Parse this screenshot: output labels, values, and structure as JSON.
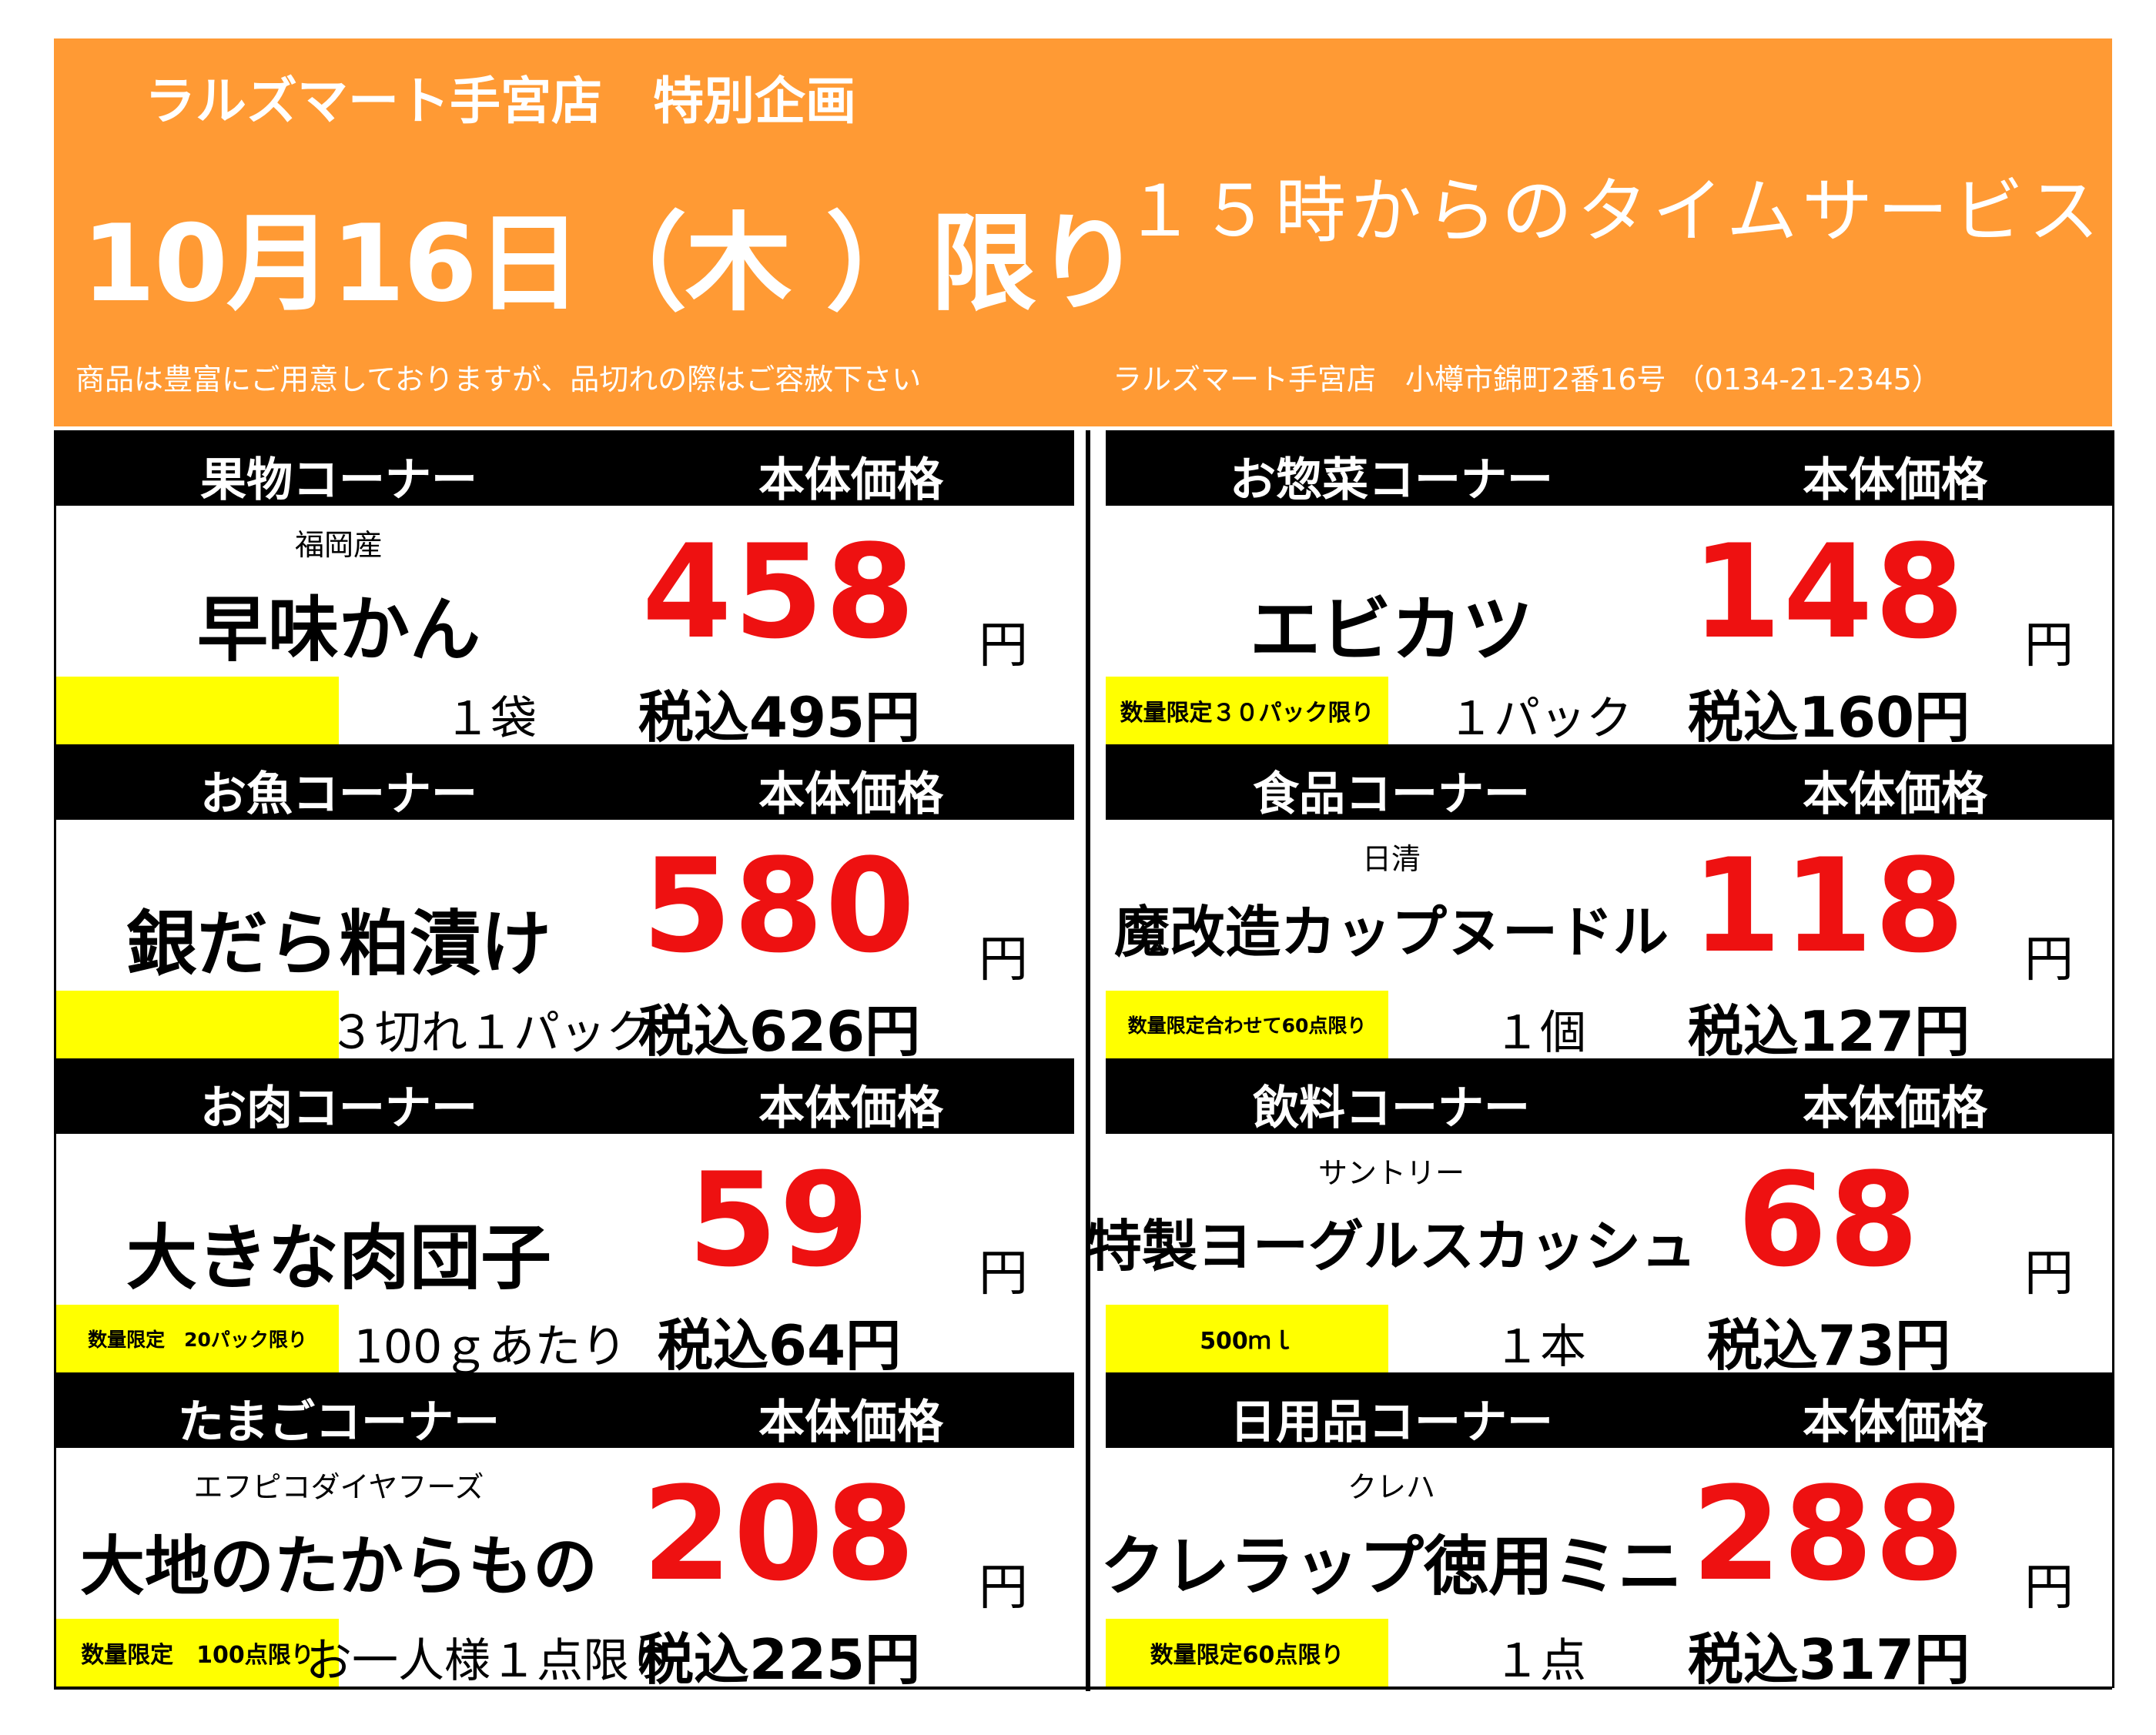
{
  "header": {
    "title": "ラルズマート手宮店　特別企画",
    "date": "10月16日（木 ）限り",
    "time_service": "１５時からのタイムサービス",
    "note": "商品は豊富にご用意しておりますが、品切れの際はご容赦下さい",
    "address": "ラルズマート手宮店　小樽市錦町2番16号 （0134-21-2345）"
  },
  "colors": {
    "header_bg": "#ff9a34",
    "price": "#ee1111",
    "tag_bg": "#ffff00",
    "bar_bg": "#000000"
  },
  "price_header": "本体価格",
  "yen": "円",
  "left": [
    {
      "corner": "果物コーナー",
      "maker": "福岡産",
      "name": "早味かん",
      "price": "458",
      "tag": "",
      "unit": "１袋",
      "tax": "税込495円"
    },
    {
      "corner": "お魚コーナー",
      "maker": "",
      "name": "銀だら粕漬け",
      "price": "580",
      "tag": "",
      "unit": "３切れ１パック",
      "tax": "税込626円"
    },
    {
      "corner": "お肉コーナー",
      "maker": "",
      "name": "大きな肉団子",
      "price": "59",
      "tag": "数量限定　20パック限り",
      "unit": "100ｇあたり",
      "tax": "税込64円"
    },
    {
      "corner": "たまごコーナー",
      "maker": "エフピコダイヤフーズ",
      "name": "大地のたからもの",
      "price": "208",
      "tag": "数量限定　100点限り",
      "unit": "お一人様１点限り",
      "tax": "税込225円"
    }
  ],
  "right": [
    {
      "corner": "お惣菜コーナー",
      "maker": "",
      "name": "エビカツ",
      "price": "148",
      "tag": "数量限定３０パック限り",
      "unit": "１パック",
      "tax": "税込160円"
    },
    {
      "corner": "食品コーナー",
      "maker": "日清",
      "name": "魔改造カップヌードル",
      "price": "118",
      "tag": "数量限定合わせて60点限り",
      "unit": "１個",
      "tax": "税込127円"
    },
    {
      "corner": "飲料コーナー",
      "maker": "サントリー",
      "name": "特製ヨーグルスカッシュ",
      "price": "68",
      "tag": "500ｍｌ",
      "unit": "１本",
      "tax": "税込73円"
    },
    {
      "corner": "日用品コーナー",
      "maker": "クレハ",
      "name": "クレラップ徳用ミニ",
      "price": "288",
      "tag": "数量限定60点限り",
      "unit": "１点",
      "tax": "税込317円"
    }
  ]
}
